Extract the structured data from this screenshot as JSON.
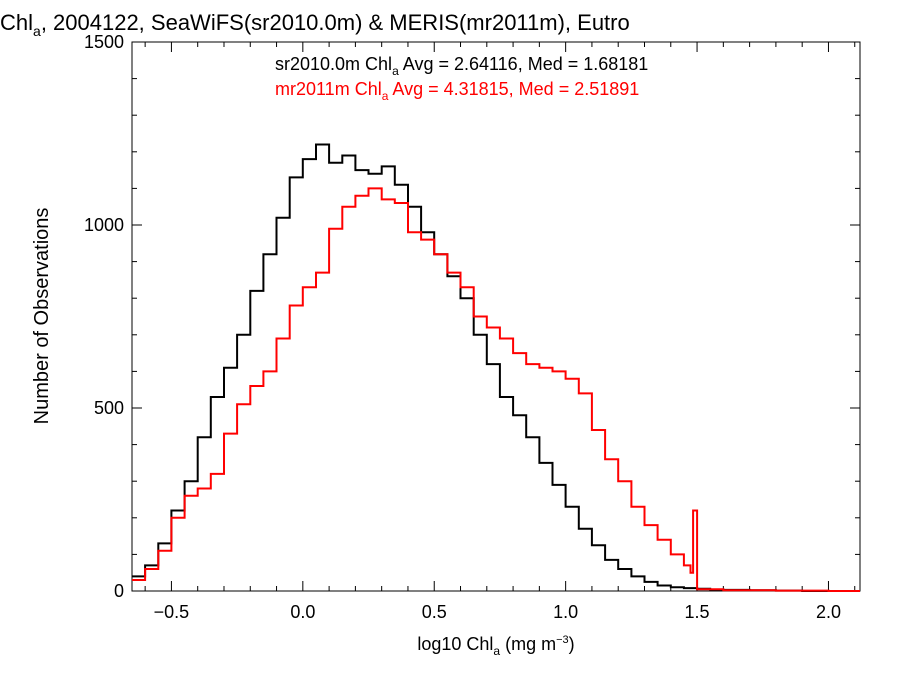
{
  "chart_data": {
    "type": "line",
    "title": {
      "pre": "Chl",
      "sub": "a",
      "post": ", 2004122, SeaWiFS(sr2010.0m) & MERIS(mr2011m), Eutro"
    },
    "xlabel": {
      "pre": "log10 Chl",
      "sub": "a",
      "mid": " (mg m",
      "sup": "−3",
      "post": ")"
    },
    "ylabel": "Number of Observations",
    "xlim": [
      -0.65,
      2.12
    ],
    "ylim": [
      0,
      1500
    ],
    "xticks": [
      {
        "v": -0.5,
        "label": "−0.5"
      },
      {
        "v": 0.0,
        "label": "0.0"
      },
      {
        "v": 0.5,
        "label": "0.5"
      },
      {
        "v": 1.0,
        "label": "1.0"
      },
      {
        "v": 1.5,
        "label": "1.5"
      },
      {
        "v": 2.0,
        "label": "2.0"
      }
    ],
    "yticks": [
      {
        "v": 0,
        "label": "0"
      },
      {
        "v": 500,
        "label": "500"
      },
      {
        "v": 1000,
        "label": "1000"
      },
      {
        "v": 1500,
        "label": "1500"
      }
    ],
    "annotations": [
      {
        "pre": "sr2010.0m Chl",
        "sub": "a",
        "post": " Avg = 2.64116, Med = 1.68181",
        "color": "#000000"
      },
      {
        "pre": "mr2011m Chl",
        "sub": "a",
        "post": " Avg = 4.31815, Med = 2.51891",
        "color": "#ff0000"
      }
    ],
    "series": [
      {
        "color": "#000000",
        "x": [
          -0.65,
          -0.6,
          -0.55,
          -0.5,
          -0.45,
          -0.4,
          -0.35,
          -0.3,
          -0.25,
          -0.2,
          -0.15,
          -0.1,
          -0.05,
          0.0,
          0.05,
          0.1,
          0.15,
          0.2,
          0.25,
          0.3,
          0.35,
          0.4,
          0.45,
          0.5,
          0.55,
          0.6,
          0.65,
          0.7,
          0.75,
          0.8,
          0.85,
          0.9,
          0.95,
          1.0,
          1.05,
          1.1,
          1.15,
          1.2,
          1.25,
          1.3,
          1.35,
          1.4,
          1.45,
          1.5,
          1.55,
          1.6,
          1.7,
          1.8,
          1.9,
          2.0,
          2.12
        ],
        "y": [
          40,
          70,
          130,
          220,
          300,
          420,
          530,
          610,
          700,
          820,
          920,
          1020,
          1130,
          1180,
          1220,
          1170,
          1190,
          1150,
          1140,
          1160,
          1110,
          1050,
          980,
          920,
          860,
          800,
          700,
          620,
          530,
          480,
          420,
          350,
          290,
          230,
          170,
          125,
          85,
          60,
          40,
          25,
          15,
          10,
          8,
          6,
          4,
          3,
          2,
          1,
          0,
          0,
          0
        ]
      },
      {
        "color": "#ff0000",
        "x": [
          -0.65,
          -0.6,
          -0.55,
          -0.5,
          -0.45,
          -0.4,
          -0.35,
          -0.3,
          -0.25,
          -0.2,
          -0.15,
          -0.1,
          -0.05,
          0.0,
          0.05,
          0.1,
          0.15,
          0.2,
          0.25,
          0.3,
          0.35,
          0.4,
          0.45,
          0.5,
          0.55,
          0.6,
          0.65,
          0.7,
          0.75,
          0.8,
          0.85,
          0.9,
          0.95,
          1.0,
          1.05,
          1.1,
          1.15,
          1.2,
          1.25,
          1.3,
          1.35,
          1.4,
          1.45,
          1.475,
          1.485,
          1.5,
          1.6,
          1.8,
          2.0,
          2.12
        ],
        "y": [
          30,
          60,
          110,
          200,
          260,
          280,
          320,
          430,
          510,
          560,
          600,
          690,
          780,
          830,
          870,
          990,
          1050,
          1080,
          1100,
          1070,
          1060,
          980,
          960,
          920,
          870,
          830,
          750,
          720,
          690,
          650,
          620,
          610,
          600,
          580,
          540,
          440,
          360,
          300,
          230,
          180,
          140,
          100,
          70,
          50,
          220,
          5,
          2,
          1,
          0,
          0
        ]
      }
    ]
  }
}
